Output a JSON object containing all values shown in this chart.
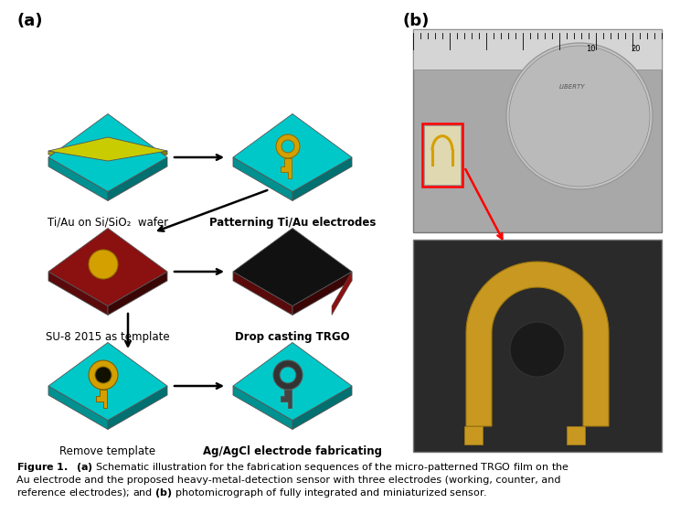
{
  "panel_a_label": "(a)",
  "panel_b_label": "(b)",
  "label_top_left": "Ti/Au on Si/SiO₂  wafer",
  "label_top_right": "Patterning Ti/Au electrodes",
  "label_mid_left": "SU-8 2015 as template",
  "label_mid_right": "Drop casting TRGO",
  "label_bot_left": "Remove template",
  "label_bot_right": "Ag/AgCl electrode fabricating",
  "bg_color": "#ffffff",
  "figure_width": 7.44,
  "figure_height": 5.62,
  "teal": "#00c8c8",
  "teal_side_l": "#009090",
  "teal_side_r": "#007070",
  "yellow_green": "#c8cc00",
  "yg_side_l": "#a0a400",
  "yg_side_r": "#808000",
  "dark_red": "#8b1010",
  "dr_side_l": "#5a0a0a",
  "dr_side_r": "#3a0505",
  "black_top": "#111111",
  "gold": "#d4a000",
  "caption_bold": "Figure 1.",
  "caption_rest": "  (a) Schematic illustration for the fabrication sequences of the micro-patterned TRGO film on the\nAu electrode and the proposed heavy-metal-detection sensor with three electrodes (working, counter, and\nreference electrodes); and (b) photomicrograph of fully integrated and miniaturized sensor."
}
